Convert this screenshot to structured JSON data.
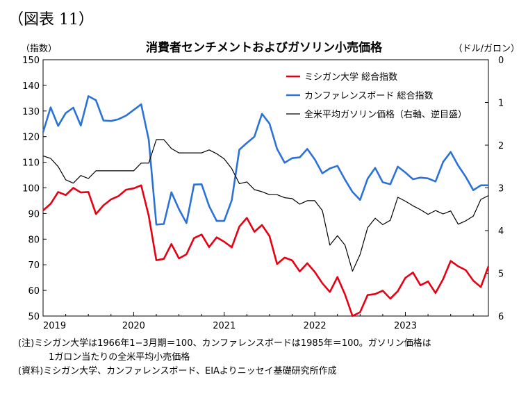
{
  "figure_label": "（図表 11）",
  "notes": [
    "(注)ミシガン大学は1966年1−3月期＝100、カンファレンスボードは1985年＝100。ガソリン価格は",
    "1ガロン当たりの全米平均小売価格",
    "(資料)ミシガン大学、カンファレンスボード、EIAよりニッセイ基礎研究所作成"
  ],
  "colors": {
    "michigan": "#e60012",
    "conference": "#2b72d6",
    "gasoline": "#000000"
  },
  "chart_data": {
    "type": "line",
    "title": "消費者センチメントおよびガソリン小売価格",
    "y_left_label": "（指数）",
    "y_right_label": "（ドル/ガロン）",
    "y_left_range": [
      50,
      150
    ],
    "y_left_ticks": [
      50,
      60,
      70,
      80,
      90,
      100,
      110,
      120,
      130,
      140,
      150
    ],
    "y_right_range": [
      0,
      6
    ],
    "y_right_inverted": true,
    "y_right_ticks": [
      0,
      1,
      2,
      3,
      4,
      5,
      6
    ],
    "x_ticks": [
      "2019",
      "2020",
      "2021",
      "2022",
      "2023"
    ],
    "x_start": "2019-01",
    "legend_position": "top-right",
    "grid": false,
    "series": [
      {
        "name": "ミシガン大学 総合指数",
        "axis": "left",
        "color": "#e60012",
        "values": [
          91.2,
          93.8,
          98.4,
          97.2,
          100.0,
          98.2,
          98.4,
          89.8,
          93.2,
          95.5,
          96.8,
          99.3,
          99.8,
          101.0,
          89.1,
          71.8,
          72.3,
          78.1,
          72.5,
          74.1,
          80.4,
          81.8,
          76.9,
          80.7,
          79.0,
          76.8,
          84.9,
          88.3,
          82.9,
          85.5,
          81.2,
          70.3,
          72.8,
          71.7,
          67.4,
          70.6,
          67.2,
          62.8,
          59.4,
          65.2,
          58.4,
          50.0,
          51.5,
          58.2,
          58.6,
          59.9,
          56.8,
          59.7,
          64.9,
          67.0,
          62.0,
          63.5,
          59.0,
          64.4,
          71.5,
          69.4,
          67.9,
          63.8,
          61.3,
          69.4
        ]
      },
      {
        "name": "カンファレンスボード 総合指数",
        "axis": "left",
        "color": "#2b72d6",
        "values": [
          121.7,
          131.4,
          124.2,
          129.2,
          131.3,
          124.3,
          135.8,
          134.2,
          126.3,
          126.1,
          126.8,
          128.2,
          130.4,
          132.6,
          118.8,
          85.7,
          85.9,
          98.3,
          91.7,
          86.3,
          101.3,
          101.4,
          92.9,
          87.1,
          87.1,
          95.2,
          114.9,
          117.5,
          120.0,
          128.9,
          125.1,
          115.2,
          109.8,
          111.6,
          111.9,
          115.2,
          111.1,
          105.7,
          107.6,
          108.6,
          103.2,
          98.4,
          95.3,
          103.6,
          107.8,
          102.2,
          101.4,
          108.3,
          106.0,
          103.4,
          104.0,
          103.7,
          102.5,
          110.1,
          114.0,
          108.7,
          104.3,
          99.1,
          101.0,
          101.0
        ]
      },
      {
        "name": "全米平均ガソリン価格（右軸、逆目盛）",
        "axis": "right",
        "color": "#000000",
        "values": [
          2.25,
          2.31,
          2.5,
          2.81,
          2.89,
          2.71,
          2.78,
          2.6,
          2.6,
          2.6,
          2.6,
          2.6,
          2.6,
          2.42,
          2.42,
          1.87,
          1.87,
          2.08,
          2.18,
          2.18,
          2.18,
          2.18,
          2.11,
          2.2,
          2.32,
          2.55,
          2.9,
          2.86,
          3.04,
          3.09,
          3.16,
          3.16,
          3.23,
          3.25,
          3.38,
          3.3,
          3.3,
          3.53,
          4.34,
          4.12,
          4.34,
          4.95,
          4.56,
          3.93,
          3.71,
          3.86,
          3.76,
          3.22,
          3.31,
          3.42,
          3.51,
          3.62,
          3.53,
          3.61,
          3.54,
          3.85,
          3.77,
          3.66,
          3.27,
          3.18
        ]
      }
    ]
  }
}
